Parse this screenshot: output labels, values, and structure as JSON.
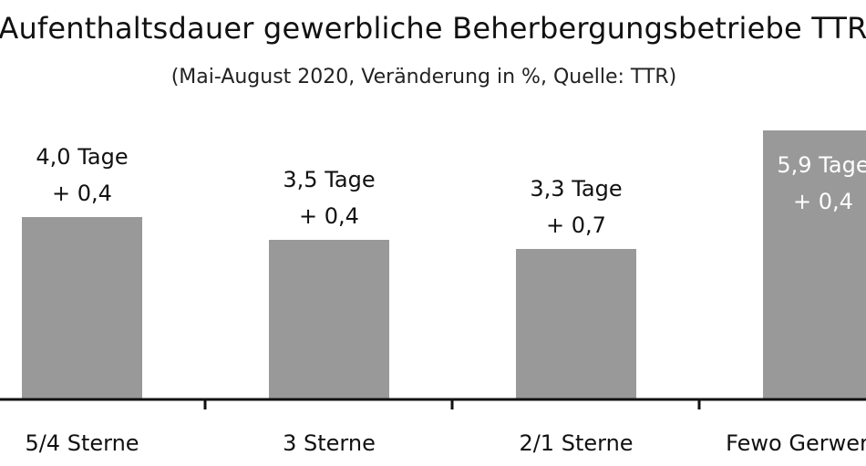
{
  "chart_data": {
    "type": "bar",
    "title": "Aufenthaltsdauer gewerbliche Beherbergungsbetriebe TTR",
    "subtitle": "(Mai-August 2020, Veränderung in %, Quelle: TTR)",
    "categories": [
      "5/4 Sterne",
      "3 Sterne",
      "2/1 Sterne",
      "Fewo Gerwerblich"
    ],
    "values": [
      4.0,
      3.5,
      3.3,
      5.9
    ],
    "value_labels": [
      "4,0 Tage",
      "3,5 Tage",
      "3,3 Tage",
      "5,9 Tage"
    ],
    "change_labels": [
      "+ 0,4",
      "+ 0,4",
      "+ 0,7",
      "+ 0,4"
    ],
    "ylim": [
      0,
      6.5
    ],
    "bar_color": "#999999",
    "axis_color": "#111111",
    "grid": false,
    "legend": "none"
  }
}
